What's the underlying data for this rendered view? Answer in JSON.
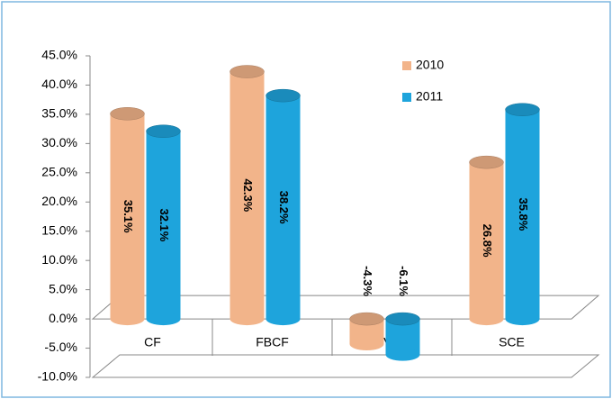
{
  "chart_data": {
    "type": "bar",
    "categories": [
      "CF",
      "FBCF",
      "VE",
      "SCE"
    ],
    "series": [
      {
        "name": "2010",
        "color": "#f2b48a",
        "values": [
          35.1,
          42.3,
          -4.3,
          26.8
        ],
        "value_labels": [
          "35.1%",
          "42.3%",
          "-4.3%",
          "26.8%"
        ]
      },
      {
        "name": "2011",
        "color": "#1ea4dc",
        "values": [
          32.1,
          38.2,
          -6.1,
          35.8
        ],
        "value_labels": [
          "32.1%",
          "38.2%",
          "-6.1%",
          "35.8%"
        ]
      }
    ],
    "ylim": [
      -10,
      45
    ],
    "yticks": [
      {
        "value": -10,
        "label": "-10.0%"
      },
      {
        "value": -5,
        "label": "-5.0%"
      },
      {
        "value": 0,
        "label": "0.0%"
      },
      {
        "value": 5,
        "label": "5.0%"
      },
      {
        "value": 10,
        "label": "10.0%"
      },
      {
        "value": 15,
        "label": "15.0%"
      },
      {
        "value": 20,
        "label": "20.0%"
      },
      {
        "value": 25,
        "label": "25.0%"
      },
      {
        "value": 30,
        "label": "30.0%"
      },
      {
        "value": 35,
        "label": "35.0%"
      },
      {
        "value": 40,
        "label": "40.0%"
      },
      {
        "value": 45,
        "label": "45.0%"
      }
    ],
    "legend": "top-right"
  }
}
